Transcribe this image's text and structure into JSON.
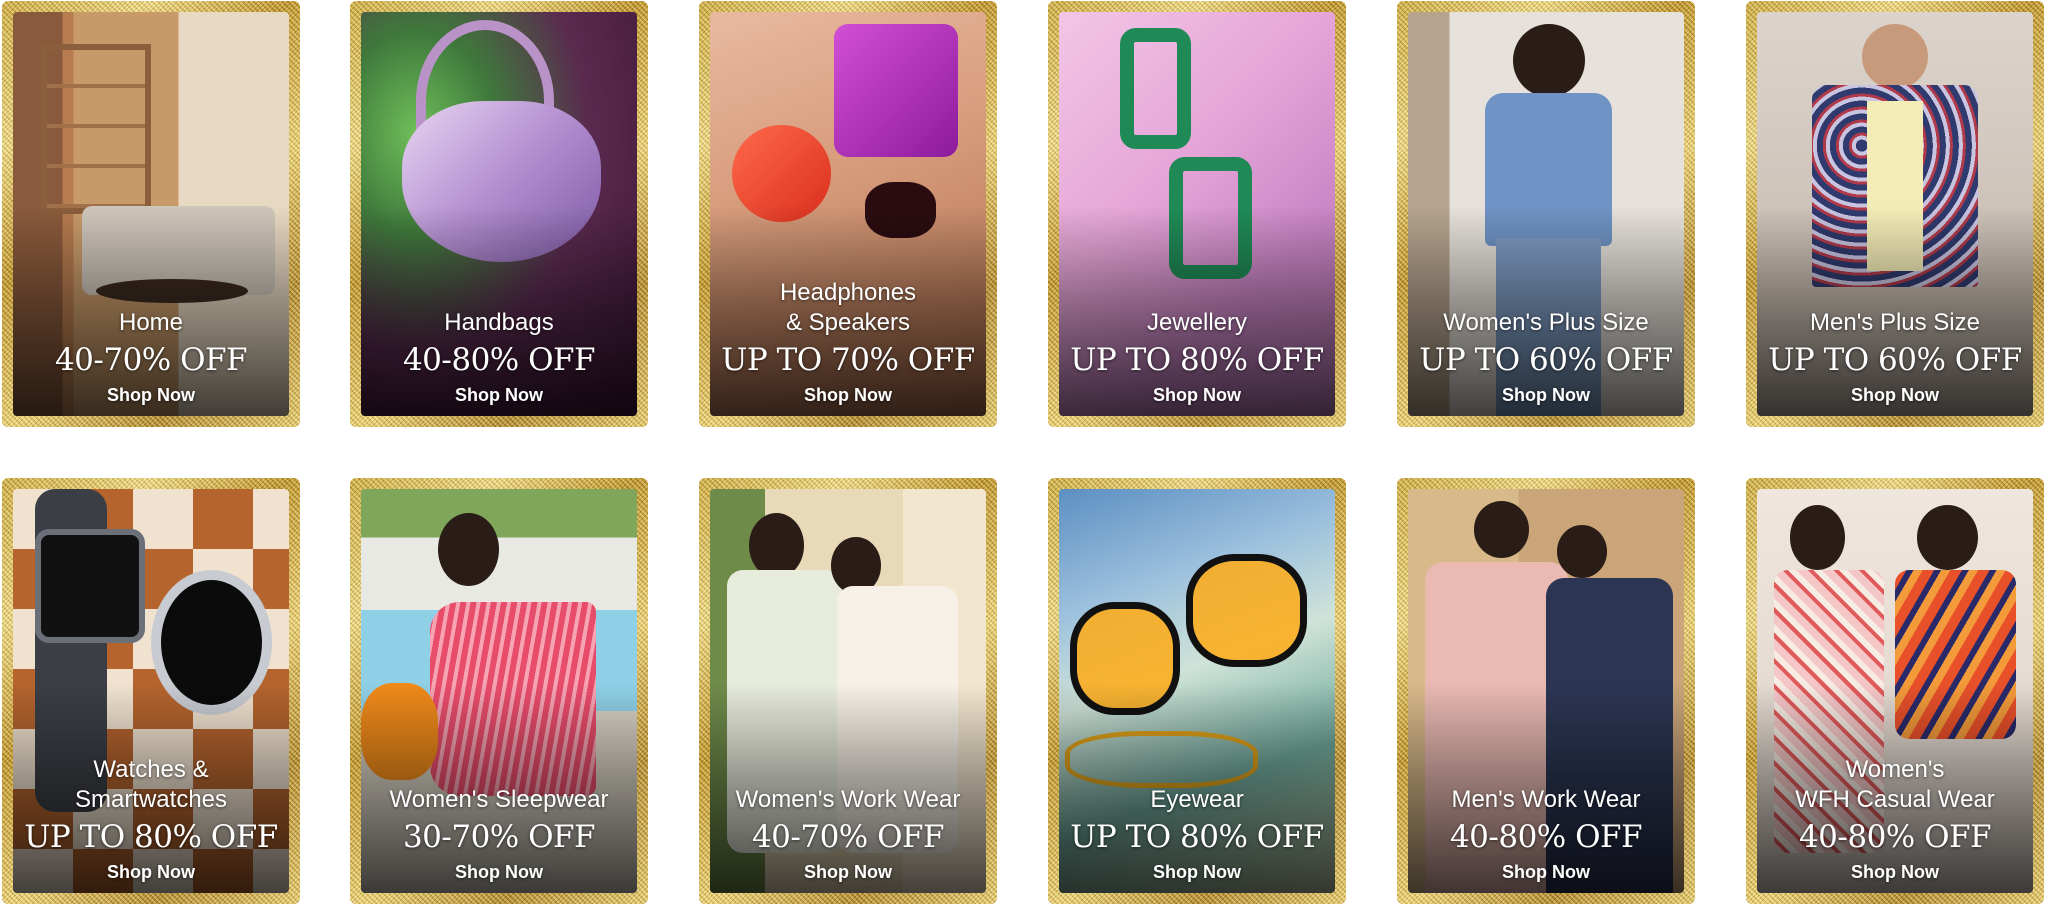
{
  "tiles": [
    {
      "category": "Home",
      "offer": "40-70% OFF",
      "cta": "Shop Now",
      "icon": "living-room-image"
    },
    {
      "category": "Handbags",
      "offer": "40-80% OFF",
      "cta": "Shop Now",
      "icon": "handbag-image"
    },
    {
      "category": "Headphones\n& Speakers",
      "offer": "UP TO 70% OFF",
      "cta": "Shop Now",
      "icon": "speakers-earbuds-image"
    },
    {
      "category": "Jewellery",
      "offer": "UP TO 80% OFF",
      "cta": "Shop Now",
      "icon": "earrings-image"
    },
    {
      "category": "Women's Plus Size",
      "offer": "UP TO 60% OFF",
      "cta": "Shop Now",
      "icon": "woman-model-image"
    },
    {
      "category": "Men's Plus Size",
      "offer": "UP TO 60% OFF",
      "cta": "Shop Now",
      "icon": "man-model-image"
    },
    {
      "category": "Watches &\nSmartwatches",
      "offer": "UP TO 80% OFF",
      "cta": "Shop Now",
      "icon": "smartwatch-image"
    },
    {
      "category": "Women's Sleepwear",
      "offer": "30-70% OFF",
      "cta": "Shop Now",
      "icon": "sleepwear-model-image"
    },
    {
      "category": "Women's Work Wear",
      "offer": "40-70% OFF",
      "cta": "Shop Now",
      "icon": "workwear-models-image"
    },
    {
      "category": "Eyewear",
      "offer": "UP TO 80% OFF",
      "cta": "Shop Now",
      "icon": "sunglasses-image"
    },
    {
      "category": "Men's Work Wear",
      "offer": "40-80% OFF",
      "cta": "Shop Now",
      "icon": "men-suits-image"
    },
    {
      "category": "Women's\nWFH Casual Wear",
      "offer": "40-80% OFF",
      "cta": "Shop Now",
      "icon": "casual-models-image"
    }
  ],
  "colors": {
    "frame_gold": "#c9a227",
    "text": "#ffffff"
  }
}
